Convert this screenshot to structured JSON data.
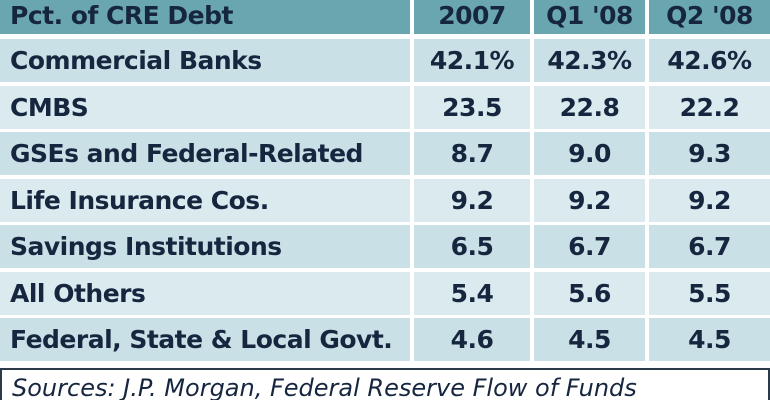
{
  "table": {
    "header": [
      "Pct. of CRE Debt",
      "2007",
      "Q1 '08",
      "Q2 '08"
    ],
    "rows": [
      [
        "Commercial Banks",
        "42.1%",
        "42.3%",
        "42.6%"
      ],
      [
        "CMBS",
        "23.5",
        "22.8",
        "22.2"
      ],
      [
        "GSEs and Federal-Related",
        "8.7",
        "9.0",
        "9.3"
      ],
      [
        "Life Insurance Cos.",
        "9.2",
        "9.2",
        "9.2"
      ],
      [
        "Savings Institutions",
        "6.5",
        "6.7",
        "6.7"
      ],
      [
        "All Others",
        "5.4",
        "5.6",
        "5.5"
      ],
      [
        "Federal, State & Local Govt.",
        "4.6",
        "4.5",
        "4.5"
      ]
    ],
    "source": "Sources: J.P. Morgan, Federal Reserve Flow of Funds"
  }
}
